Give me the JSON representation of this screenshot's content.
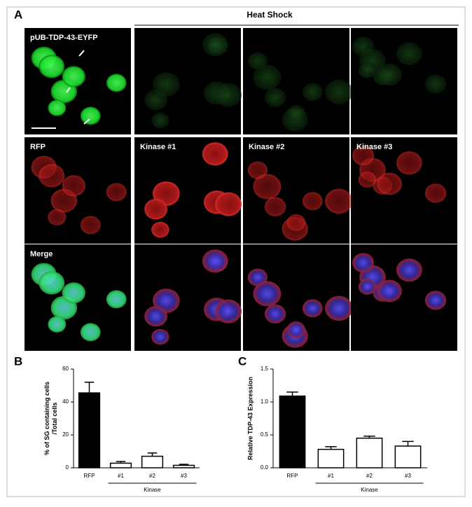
{
  "figure": {
    "panel_a": "A",
    "heading": "Heat Shock",
    "panel_b": "B",
    "panel_c": "C",
    "image_labels": [
      "pUB-TDP-43-EYFP",
      "RFP",
      "Kinase #1",
      "Kinase #2",
      "Kinase #3",
      "Merge"
    ]
  },
  "chart_data": [
    {
      "type": "bar",
      "ylabel": [
        "% of SG containing cells",
        "/Total cells"
      ],
      "categories": [
        "RFP",
        "#1",
        "#2",
        "#3"
      ],
      "values": [
        45.5,
        2.8,
        7,
        1.5
      ],
      "errors": [
        6.5,
        1,
        2,
        0.6
      ],
      "colors": [
        "#000000",
        "#ffffff",
        "#ffffff",
        "#ffffff"
      ],
      "group_label": "Kinase",
      "ylim": [
        0,
        60
      ],
      "yticks": [
        0,
        20,
        40,
        60
      ]
    },
    {
      "type": "bar",
      "ylabel": [
        "Relative TDP-43 Expression"
      ],
      "categories": [
        "RFP",
        "#1",
        "#2",
        "#3"
      ],
      "values": [
        1.09,
        0.28,
        0.45,
        0.33
      ],
      "errors": [
        0.06,
        0.04,
        0.03,
        0.07
      ],
      "colors": [
        "#000000",
        "#ffffff",
        "#ffffff",
        "#ffffff"
      ],
      "group_label": "Kinase",
      "ylim": [
        0,
        1.5
      ],
      "yticks": [
        {
          "value": 0,
          "label": "0.0"
        },
        0.5,
        {
          "value": 1,
          "label": "1.0"
        },
        1.5
      ]
    }
  ]
}
